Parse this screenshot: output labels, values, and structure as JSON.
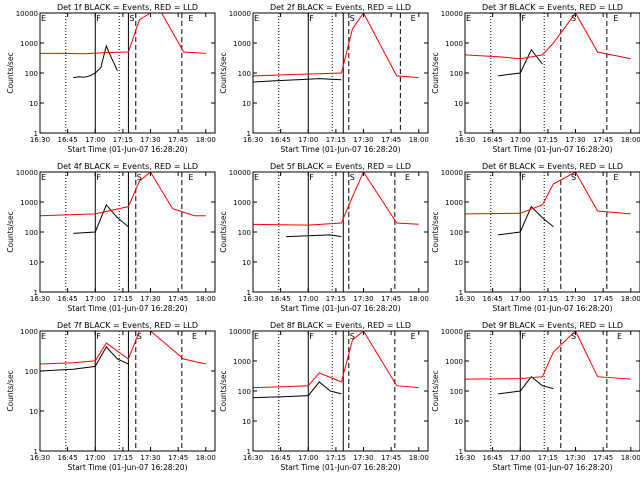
{
  "x_ticks": [
    "16:30",
    "16:45",
    "17:00",
    "17:15",
    "17:30",
    "17:45",
    "18:00"
  ],
  "y_ticks": [
    "1",
    "10",
    "100",
    "1000",
    "10000"
  ],
  "xlabel": "Start Time (01-Jun-07 16:28:20)",
  "ylabel": "Counts/sec",
  "chart_data": [
    {
      "type": "line",
      "title": "Det 1f BLACK = Events, RED = LLD",
      "xlabel": "Start Time (01-Jun-07 16:28:20)",
      "ylabel": "Counts/sec",
      "y_scale": "log",
      "ylim": [
        1,
        10000
      ],
      "xlim": [
        "16:30",
        "18:05"
      ],
      "x_ticks": [
        "16:30",
        "16:45",
        "17:00",
        "17:15",
        "17:30",
        "17:45",
        "18:00"
      ],
      "y_ticks": [
        "1",
        "10",
        "100",
        "1000",
        "10000"
      ],
      "markers": [
        {
          "label": "E",
          "x": "16:30"
        },
        {
          "label": "F",
          "x": "17:00"
        },
        {
          "label": "S",
          "x": "17:18"
        },
        {
          "label": "E",
          "x": "17:50"
        }
      ],
      "solid_lines": [
        "17:00",
        "17:18"
      ],
      "dotted_lines": [
        "16:44",
        "17:13"
      ],
      "dashed_lines": [
        "17:22",
        "17:47"
      ],
      "series": [
        {
          "color": "#000000",
          "x": [
            16.8,
            16.85,
            16.9,
            16.95,
            17.0,
            17.05,
            17.1,
            17.15,
            17.2
          ],
          "y": [
            70,
            75,
            72,
            80,
            100,
            150,
            800,
            300,
            120
          ]
        },
        {
          "color": "#ff0000",
          "x": [
            16.5,
            16.7,
            16.9,
            17.1,
            17.3,
            17.4,
            17.5,
            17.6,
            17.8,
            18.0
          ],
          "y": [
            450,
            450,
            440,
            480,
            500,
            6000,
            10000,
            10000,
            500,
            450
          ]
        }
      ]
    },
    {
      "type": "line",
      "title": "Det 2f BLACK = Events, RED = LLD",
      "xlabel": "Start Time (01-Jun-07 16:28:20)",
      "ylabel": "Counts/sec",
      "y_scale": "log",
      "ylim": [
        1,
        10000
      ],
      "xlim": [
        "16:30",
        "18:05"
      ],
      "x_ticks": [
        "16:30",
        "16:45",
        "17:00",
        "17:15",
        "17:30",
        "17:45",
        "18:00"
      ],
      "y_ticks": [
        "1",
        "10",
        "100",
        "1000",
        "10000"
      ],
      "markers": [
        {
          "label": "E",
          "x": "16:30"
        },
        {
          "label": "F",
          "x": "17:00"
        },
        {
          "label": "S",
          "x": "17:22"
        },
        {
          "label": "E",
          "x": "17:55"
        }
      ],
      "solid_lines": [
        "17:00",
        "17:19"
      ],
      "dotted_lines": [
        "16:44",
        "17:13"
      ],
      "dashed_lines": [
        "17:22",
        "17:50"
      ],
      "series": [
        {
          "color": "#000000",
          "x": [
            16.5,
            16.7,
            16.9,
            17.1,
            17.3
          ],
          "y": [
            50,
            55,
            60,
            65,
            60
          ]
        },
        {
          "color": "#ff0000",
          "x": [
            16.5,
            16.7,
            16.9,
            17.1,
            17.3,
            17.4,
            17.5,
            17.8,
            18.0
          ],
          "y": [
            80,
            85,
            90,
            95,
            100,
            3000,
            10000,
            80,
            70
          ]
        }
      ]
    },
    {
      "type": "line",
      "title": "Det 3f BLACK = Events, RED = LLD",
      "xlabel": "Start Time (01-Jun-07 16:28:20)",
      "ylabel": "Counts/sec",
      "y_scale": "log",
      "ylim": [
        1,
        10000
      ],
      "xlim": [
        "16:30",
        "18:05"
      ],
      "x_ticks": [
        "16:30",
        "16:45",
        "17:00",
        "17:15",
        "17:30",
        "17:45",
        "18:00"
      ],
      "y_ticks": [
        "1",
        "10",
        "100",
        "1000",
        "10000"
      ],
      "markers": [
        {
          "label": "E",
          "x": "16:30"
        },
        {
          "label": "F",
          "x": "17:00"
        },
        {
          "label": "S",
          "x": "17:27"
        },
        {
          "label": "E",
          "x": "17:50"
        }
      ],
      "solid_lines": [
        "17:00"
      ],
      "dotted_lines": [
        "16:44",
        "17:13"
      ],
      "dashed_lines": [
        "17:22",
        "17:47"
      ],
      "series": [
        {
          "color": "#000000",
          "x": [
            16.8,
            16.9,
            17.0,
            17.1,
            17.2
          ],
          "y": [
            80,
            90,
            100,
            600,
            200
          ]
        },
        {
          "color": "#ff0000",
          "x": [
            16.5,
            16.8,
            17.0,
            17.2,
            17.3,
            17.5,
            17.7,
            18.0
          ],
          "y": [
            400,
            350,
            300,
            400,
            1000,
            10000,
            500,
            300
          ]
        }
      ]
    },
    {
      "type": "line",
      "title": "Det 4f BLACK = Events, RED = LLD",
      "xlabel": "Start Time (01-Jun-07 16:28:20)",
      "ylabel": "Counts/sec",
      "y_scale": "log",
      "ylim": [
        1,
        10000
      ],
      "xlim": [
        "16:30",
        "18:05"
      ],
      "x_ticks": [
        "16:30",
        "16:45",
        "17:00",
        "17:15",
        "17:30",
        "17:45",
        "18:00"
      ],
      "y_ticks": [
        "1",
        "10",
        "100",
        "1000",
        "10000"
      ],
      "markers": [
        {
          "label": "E",
          "x": "16:30"
        },
        {
          "label": "F",
          "x": "17:00"
        },
        {
          "label": "S",
          "x": "17:22"
        },
        {
          "label": "E",
          "x": "17:50"
        }
      ],
      "solid_lines": [
        "17:00",
        "17:18"
      ],
      "dotted_lines": [
        "16:44",
        "17:13"
      ],
      "dashed_lines": [
        "17:22",
        "17:47"
      ],
      "series": [
        {
          "color": "#000000",
          "x": [
            16.8,
            17.0,
            17.1,
            17.2,
            17.3
          ],
          "y": [
            90,
            100,
            800,
            300,
            150
          ]
        },
        {
          "color": "#ff0000",
          "x": [
            16.5,
            17.0,
            17.3,
            17.4,
            17.5,
            17.7,
            17.9,
            18.0
          ],
          "y": [
            350,
            400,
            700,
            5000,
            10000,
            600,
            350,
            350
          ]
        }
      ]
    },
    {
      "type": "line",
      "title": "Det 5f BLACK = Events, RED = LLD",
      "xlabel": "Start Time (01-Jun-07 16:28:20)",
      "ylabel": "Counts/sec",
      "y_scale": "log",
      "ylim": [
        1,
        10000
      ],
      "xlim": [
        "16:30",
        "18:05"
      ],
      "x_ticks": [
        "16:30",
        "16:45",
        "17:00",
        "17:15",
        "17:30",
        "17:45",
        "18:00"
      ],
      "y_ticks": [
        "1",
        "10",
        "100",
        "1000",
        "10000"
      ],
      "markers": [
        {
          "label": "E",
          "x": "16:30"
        },
        {
          "label": "F",
          "x": "17:00"
        },
        {
          "label": "S",
          "x": "17:22"
        },
        {
          "label": "E",
          "x": "17:52"
        }
      ],
      "solid_lines": [
        "17:00",
        "17:19"
      ],
      "dotted_lines": [
        "16:44",
        "17:13"
      ],
      "dashed_lines": [
        "17:22",
        "17:47"
      ],
      "series": [
        {
          "color": "#000000",
          "x": [
            16.8,
            17.0,
            17.2,
            17.3
          ],
          "y": [
            70,
            75,
            80,
            70
          ]
        },
        {
          "color": "#ff0000",
          "x": [
            16.5,
            17.0,
            17.3,
            17.4,
            17.5,
            17.8,
            18.0
          ],
          "y": [
            180,
            170,
            200,
            1500,
            10000,
            200,
            180
          ]
        }
      ]
    },
    {
      "type": "line",
      "title": "Det 6f BLACK = Events, RED = LLD",
      "xlabel": "Start Time (01-Jun-07 16:28:20)",
      "ylabel": "Counts/sec",
      "y_scale": "log",
      "ylim": [
        1,
        10000
      ],
      "xlim": [
        "16:30",
        "18:05"
      ],
      "x_ticks": [
        "16:30",
        "16:45",
        "17:00",
        "17:15",
        "17:30",
        "17:45",
        "18:00"
      ],
      "y_ticks": [
        "1",
        "10",
        "100",
        "1000",
        "10000"
      ],
      "markers": [
        {
          "label": "E",
          "x": "16:30"
        },
        {
          "label": "F",
          "x": "17:00"
        },
        {
          "label": "S",
          "x": "17:27"
        },
        {
          "label": "E",
          "x": "17:50"
        }
      ],
      "solid_lines": [
        "17:00"
      ],
      "dotted_lines": [
        "16:44",
        "17:13"
      ],
      "dashed_lines": [
        "17:22",
        "17:47"
      ],
      "series": [
        {
          "color": "#000000",
          "x": [
            16.8,
            17.0,
            17.1,
            17.2,
            17.3
          ],
          "y": [
            80,
            100,
            700,
            300,
            150
          ]
        },
        {
          "color": "#ff0000",
          "x": [
            16.5,
            17.0,
            17.2,
            17.3,
            17.5,
            17.7,
            18.0
          ],
          "y": [
            400,
            420,
            800,
            4000,
            10000,
            500,
            400
          ]
        }
      ]
    },
    {
      "type": "line",
      "title": "Det 7f BLACK = Events, RED = LLD",
      "xlabel": "Start Time (01-Jun-07 16:28:20)",
      "ylabel": "Counts/sec",
      "y_scale": "log",
      "ylim": [
        1,
        1000
      ],
      "xlim": [
        "16:30",
        "18:05"
      ],
      "x_ticks": [
        "16:30",
        "16:45",
        "17:00",
        "17:15",
        "17:30",
        "17:45",
        "18:00"
      ],
      "y_ticks": [
        "1",
        "10",
        "100",
        "1000"
      ],
      "markers": [
        {
          "label": "E",
          "x": "16:30"
        },
        {
          "label": "F",
          "x": "17:00"
        },
        {
          "label": "S",
          "x": "17:22"
        },
        {
          "label": "E",
          "x": "17:52"
        }
      ],
      "solid_lines": [
        "17:00",
        "17:18"
      ],
      "dotted_lines": [
        "16:44",
        "17:13"
      ],
      "dashed_lines": [
        "17:22",
        "17:47"
      ],
      "series": [
        {
          "color": "#000000",
          "x": [
            16.5,
            16.8,
            17.0,
            17.1,
            17.2,
            17.3
          ],
          "y": [
            100,
            110,
            130,
            400,
            200,
            150
          ]
        },
        {
          "color": "#ff0000",
          "x": [
            16.5,
            16.8,
            17.0,
            17.1,
            17.3,
            17.4,
            17.5,
            17.8,
            18.0
          ],
          "y": [
            150,
            160,
            180,
            500,
            200,
            1000,
            1000,
            200,
            150
          ]
        }
      ]
    },
    {
      "type": "line",
      "title": "Det 8f BLACK = Events, RED = LLD",
      "xlabel": "Start Time (01-Jun-07 16:28:20)",
      "ylabel": "Counts/sec",
      "y_scale": "log",
      "ylim": [
        1,
        10000
      ],
      "xlim": [
        "16:30",
        "18:05"
      ],
      "x_ticks": [
        "16:30",
        "16:45",
        "17:00",
        "17:15",
        "17:30",
        "17:45",
        "18:00"
      ],
      "y_ticks": [
        "1",
        "10",
        "100",
        "1000",
        "10000"
      ],
      "markers": [
        {
          "label": "E",
          "x": "16:30"
        },
        {
          "label": "F",
          "x": "17:00"
        },
        {
          "label": "S",
          "x": "17:22"
        },
        {
          "label": "E",
          "x": "17:55"
        }
      ],
      "solid_lines": [
        "17:00",
        "17:19"
      ],
      "dotted_lines": [
        "16:44",
        "17:13"
      ],
      "dashed_lines": [
        "17:22",
        "17:47"
      ],
      "series": [
        {
          "color": "#000000",
          "x": [
            16.5,
            16.8,
            17.0,
            17.1,
            17.2,
            17.3
          ],
          "y": [
            60,
            65,
            70,
            200,
            100,
            80
          ]
        },
        {
          "color": "#ff0000",
          "x": [
            16.5,
            16.8,
            17.0,
            17.1,
            17.3,
            17.4,
            17.5,
            17.8,
            18.0
          ],
          "y": [
            130,
            140,
            150,
            400,
            200,
            5000,
            10000,
            150,
            130
          ]
        }
      ]
    },
    {
      "type": "line",
      "title": "Det 9f BLACK = Events, RED = LLD",
      "xlabel": "Start Time (01-Jun-07 16:28:20)",
      "ylabel": "Counts/sec",
      "y_scale": "log",
      "ylim": [
        1,
        10000
      ],
      "xlim": [
        "16:30",
        "18:05"
      ],
      "x_ticks": [
        "16:30",
        "16:45",
        "17:00",
        "17:15",
        "17:30",
        "17:45",
        "18:00"
      ],
      "y_ticks": [
        "1",
        "10",
        "100",
        "1000",
        "10000"
      ],
      "markers": [
        {
          "label": "E",
          "x": "16:30"
        },
        {
          "label": "F",
          "x": "17:00"
        },
        {
          "label": "S",
          "x": "17:27"
        },
        {
          "label": "E",
          "x": "17:52"
        }
      ],
      "solid_lines": [
        "17:00"
      ],
      "dotted_lines": [
        "16:44",
        "17:13"
      ],
      "dashed_lines": [
        "17:22",
        "17:47"
      ],
      "series": [
        {
          "color": "#000000",
          "x": [
            16.8,
            17.0,
            17.1,
            17.2,
            17.3
          ],
          "y": [
            80,
            100,
            300,
            150,
            120
          ]
        },
        {
          "color": "#ff0000",
          "x": [
            16.5,
            17.0,
            17.2,
            17.3,
            17.5,
            17.7,
            18.0
          ],
          "y": [
            250,
            260,
            300,
            2000,
            10000,
            300,
            250
          ]
        }
      ]
    }
  ]
}
